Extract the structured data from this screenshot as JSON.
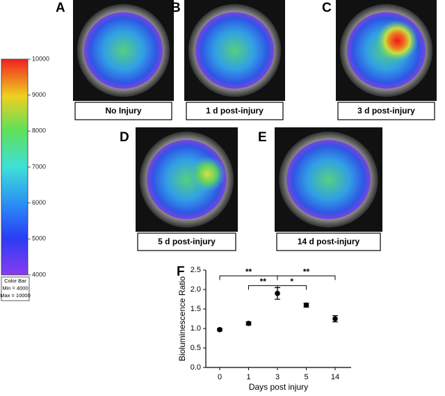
{
  "colorbar": {
    "lim": [
      4000,
      10000
    ],
    "ticks": [
      4000,
      5000,
      6000,
      7000,
      8000,
      9000,
      10000
    ],
    "caption": [
      "Color Bar",
      "Min = 4000",
      "Max = 10000"
    ]
  },
  "panels": [
    {
      "letter": "A",
      "label": "No Injury"
    },
    {
      "letter": "B",
      "label": "1 d post-injury"
    },
    {
      "letter": "C",
      "label": "3 d post-injury"
    },
    {
      "letter": "D",
      "label": "5 d post-injury"
    },
    {
      "letter": "E",
      "label": "14 d post-injury"
    }
  ],
  "chart_data": {
    "type": "errorbar",
    "letter": "F",
    "ylabel": "Bioluminescence Ratio",
    "xlabel": "Days post injury",
    "categories": [
      "0",
      "1",
      "3",
      "5",
      "14"
    ],
    "values": [
      0.97,
      1.13,
      1.9,
      1.6,
      1.25
    ],
    "errors": [
      0.03,
      0.04,
      0.15,
      0.05,
      0.08
    ],
    "color": "#000000",
    "ylim": [
      0,
      2.5
    ],
    "yticks": [
      {
        "value": 0,
        "label": "0.0"
      },
      0.5,
      {
        "value": 1,
        "label": "1.0"
      },
      1.5,
      {
        "value": 2,
        "label": "2.0"
      },
      2.5
    ],
    "annotations": [
      {
        "label": "**",
        "from": "0",
        "to": "3",
        "y": 2.35
      },
      {
        "label": "**",
        "from": "1",
        "to": "3",
        "y": 2.1
      },
      {
        "label": "**",
        "from": "3",
        "to": "14",
        "y": 2.35
      },
      {
        "label": "*",
        "from": "3",
        "to": "5",
        "y": 2.1
      }
    ]
  }
}
